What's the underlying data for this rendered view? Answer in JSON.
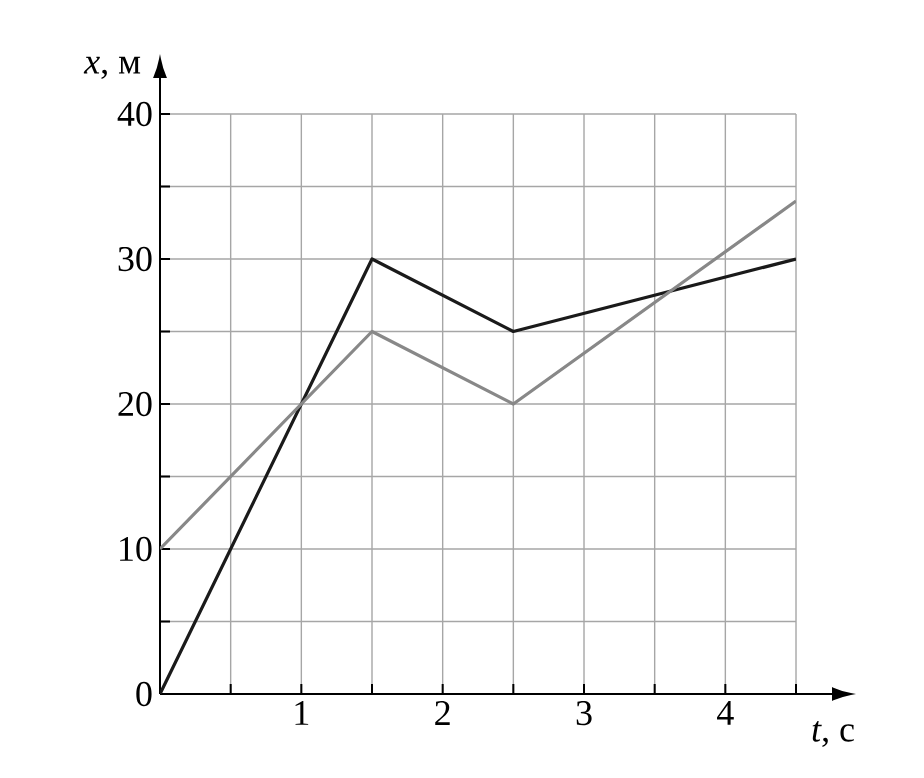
{
  "chart_data": {
    "type": "line",
    "xlabel": "*t*, с",
    "ylabel": "*x*, м",
    "x": [
      0,
      1.5,
      2.5,
      4.5
    ],
    "series": [
      {
        "color": "#1a1a1a",
        "values": [
          0,
          30,
          25,
          30
        ]
      },
      {
        "color": "#888888",
        "values": [
          10,
          25,
          20,
          34
        ]
      }
    ],
    "xlim": [
      0,
      4.5
    ],
    "ylim": [
      0,
      40
    ],
    "xticks": [
      {
        "value": 0.5,
        "label": null
      },
      1,
      {
        "value": 1.5,
        "label": null
      },
      2,
      {
        "value": 2.5,
        "label": null
      },
      3,
      {
        "value": 3.5,
        "label": null
      },
      4,
      {
        "value": 4.5,
        "label": null
      }
    ],
    "yticks": [
      0,
      {
        "value": 5,
        "label": null
      },
      10,
      {
        "value": 15,
        "label": null
      },
      20,
      {
        "value": 25,
        "label": null
      },
      30,
      {
        "value": 35,
        "label": null
      },
      40
    ],
    "grid": true,
    "marker": "none",
    "line_style": "solid"
  }
}
